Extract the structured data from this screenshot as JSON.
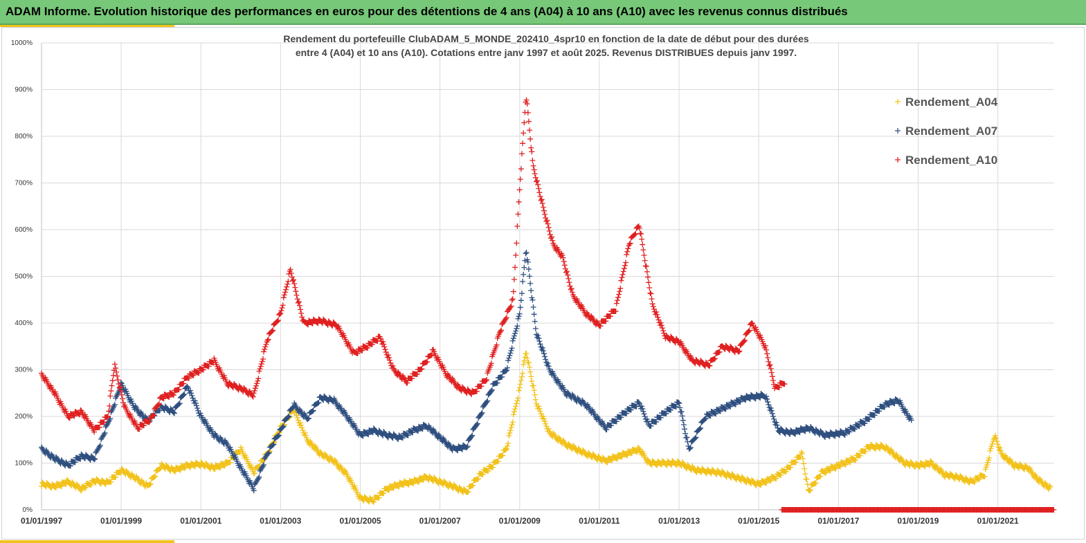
{
  "banner": {
    "title": "ADAM Informe. Evolution historique des performances en euros pour des détentions de 4 ans (A04) à 10 ans (A10) avec les revenus connus distribués"
  },
  "colors": {
    "banner": "#77c879",
    "accent": "#f2c21b",
    "A04": "#f2c21b",
    "A07": "#2f4f7f",
    "A10": "#e02020",
    "grid": "#d9d9d9"
  },
  "chart_data": {
    "type": "scatter",
    "title": [
      "Rendement du portefeuille ClubADAM_5_MONDE_202410_4spr10  en fonction de la date de début pour des durées",
      "entre 4 (A04) et 10 ans (A10). Cotations entre janv 1997 et août 2025. Revenus DISTRIBUES depuis janv 1997."
    ],
    "xlabel": "",
    "ylabel": "",
    "x_range": [
      "1997-01-01",
      "2022-06-01"
    ],
    "ylim": [
      0,
      1000
    ],
    "y_ticks": [
      "0%",
      "100%",
      "200%",
      "300%",
      "400%",
      "500%",
      "600%",
      "700%",
      "800%",
      "900%",
      "1000%"
    ],
    "x_ticks": [
      "01/01/1997",
      "01/01/1999",
      "01/01/2001",
      "01/01/2003",
      "01/01/2005",
      "01/01/2007",
      "01/01/2009",
      "01/01/2011",
      "01/01/2013",
      "01/01/2015",
      "01/01/2017",
      "01/01/2019",
      "01/01/2021"
    ],
    "grid": true,
    "legend_position": "top-right",
    "marker": "+",
    "series": [
      {
        "name": "Rendement_A04",
        "color": "#f2c21b",
        "points": [
          [
            "1997-01-01",
            55
          ],
          [
            "1997-05-01",
            50
          ],
          [
            "1997-09-01",
            60
          ],
          [
            "1998-01-01",
            45
          ],
          [
            "1998-05-01",
            62
          ],
          [
            "1998-09-01",
            58
          ],
          [
            "1999-01-01",
            85
          ],
          [
            "1999-05-01",
            70
          ],
          [
            "1999-09-01",
            50
          ],
          [
            "2000-01-01",
            95
          ],
          [
            "2000-05-01",
            85
          ],
          [
            "2000-09-01",
            95
          ],
          [
            "2001-01-01",
            98
          ],
          [
            "2001-05-01",
            90
          ],
          [
            "2001-09-01",
            100
          ],
          [
            "2002-01-01",
            130
          ],
          [
            "2002-05-01",
            80
          ],
          [
            "2002-09-01",
            120
          ],
          [
            "2003-01-01",
            175
          ],
          [
            "2003-05-01",
            215
          ],
          [
            "2003-09-01",
            150
          ],
          [
            "2004-01-01",
            120
          ],
          [
            "2004-05-01",
            105
          ],
          [
            "2004-09-01",
            75
          ],
          [
            "2005-01-01",
            25
          ],
          [
            "2005-05-01",
            20
          ],
          [
            "2005-09-01",
            45
          ],
          [
            "2006-01-01",
            55
          ],
          [
            "2006-05-01",
            60
          ],
          [
            "2006-09-01",
            70
          ],
          [
            "2007-01-01",
            60
          ],
          [
            "2007-05-01",
            50
          ],
          [
            "2007-09-01",
            38
          ],
          [
            "2008-01-01",
            75
          ],
          [
            "2008-05-01",
            95
          ],
          [
            "2008-09-01",
            130
          ],
          [
            "2009-01-01",
            260
          ],
          [
            "2009-03-01",
            340
          ],
          [
            "2009-06-01",
            230
          ],
          [
            "2009-10-01",
            165
          ],
          [
            "2010-03-01",
            140
          ],
          [
            "2010-09-01",
            120
          ],
          [
            "2011-03-01",
            105
          ],
          [
            "2011-09-01",
            120
          ],
          [
            "2012-01-01",
            130
          ],
          [
            "2012-04-01",
            100
          ],
          [
            "2012-09-01",
            100
          ],
          [
            "2013-01-01",
            100
          ],
          [
            "2013-06-01",
            85
          ],
          [
            "2014-01-01",
            80
          ],
          [
            "2014-06-01",
            70
          ],
          [
            "2015-01-01",
            55
          ],
          [
            "2015-06-01",
            70
          ],
          [
            "2015-10-01",
            90
          ],
          [
            "2016-02-01",
            120
          ],
          [
            "2016-04-01",
            40
          ],
          [
            "2016-08-01",
            80
          ],
          [
            "2017-01-01",
            95
          ],
          [
            "2017-06-01",
            110
          ],
          [
            "2017-10-01",
            135
          ],
          [
            "2018-03-01",
            135
          ],
          [
            "2018-09-01",
            100
          ],
          [
            "2019-01-01",
            95
          ],
          [
            "2019-05-01",
            100
          ],
          [
            "2019-09-01",
            75
          ],
          [
            "2020-01-01",
            70
          ],
          [
            "2020-05-01",
            60
          ],
          [
            "2020-09-01",
            75
          ],
          [
            "2020-12-01",
            160
          ],
          [
            "2021-02-01",
            120
          ],
          [
            "2021-06-01",
            95
          ],
          [
            "2021-10-01",
            90
          ],
          [
            "2022-01-01",
            65
          ],
          [
            "2022-05-01",
            45
          ]
        ]
      },
      {
        "name": "Rendement_A07",
        "color": "#2f4f7f",
        "points": [
          [
            "1997-01-01",
            130
          ],
          [
            "1997-05-01",
            110
          ],
          [
            "1997-09-01",
            95
          ],
          [
            "1998-01-01",
            115
          ],
          [
            "1998-05-01",
            110
          ],
          [
            "1998-09-01",
            185
          ],
          [
            "1999-01-01",
            270
          ],
          [
            "1999-05-01",
            220
          ],
          [
            "1999-09-01",
            190
          ],
          [
            "2000-01-01",
            220
          ],
          [
            "2000-05-01",
            210
          ],
          [
            "2000-09-01",
            265
          ],
          [
            "2001-01-01",
            200
          ],
          [
            "2001-05-01",
            160
          ],
          [
            "2001-09-01",
            140
          ],
          [
            "2002-01-01",
            90
          ],
          [
            "2002-05-01",
            45
          ],
          [
            "2002-09-01",
            120
          ],
          [
            "2003-01-01",
            170
          ],
          [
            "2003-05-01",
            225
          ],
          [
            "2003-09-01",
            195
          ],
          [
            "2004-01-01",
            240
          ],
          [
            "2004-05-01",
            235
          ],
          [
            "2004-09-01",
            200
          ],
          [
            "2005-01-01",
            160
          ],
          [
            "2005-05-01",
            170
          ],
          [
            "2005-09-01",
            160
          ],
          [
            "2006-01-01",
            155
          ],
          [
            "2006-05-01",
            170
          ],
          [
            "2006-09-01",
            180
          ],
          [
            "2007-01-01",
            155
          ],
          [
            "2007-05-01",
            130
          ],
          [
            "2007-09-01",
            135
          ],
          [
            "2008-01-01",
            200
          ],
          [
            "2008-05-01",
            265
          ],
          [
            "2008-09-01",
            300
          ],
          [
            "2009-01-01",
            420
          ],
          [
            "2009-03-01",
            560
          ],
          [
            "2009-06-01",
            380
          ],
          [
            "2009-10-01",
            300
          ],
          [
            "2010-03-01",
            250
          ],
          [
            "2010-09-01",
            225
          ],
          [
            "2011-03-01",
            175
          ],
          [
            "2011-09-01",
            210
          ],
          [
            "2012-01-01",
            230
          ],
          [
            "2012-04-01",
            180
          ],
          [
            "2012-09-01",
            210
          ],
          [
            "2013-01-01",
            230
          ],
          [
            "2013-04-01",
            130
          ],
          [
            "2013-09-01",
            200
          ],
          [
            "2014-03-01",
            220
          ],
          [
            "2014-09-01",
            240
          ],
          [
            "2015-03-01",
            245
          ],
          [
            "2015-07-01",
            170
          ],
          [
            "2015-11-01",
            165
          ],
          [
            "2016-04-01",
            175
          ],
          [
            "2016-09-01",
            160
          ],
          [
            "2017-03-01",
            165
          ],
          [
            "2017-09-01",
            190
          ],
          [
            "2018-03-01",
            225
          ],
          [
            "2018-07-01",
            235
          ],
          [
            "2018-11-01",
            190
          ]
        ]
      },
      {
        "name": "Rendement_A10",
        "color": "#e02020",
        "points": [
          [
            "1997-01-01",
            290
          ],
          [
            "1997-05-01",
            250
          ],
          [
            "1997-09-01",
            200
          ],
          [
            "1998-01-01",
            210
          ],
          [
            "1998-05-01",
            170
          ],
          [
            "1998-09-01",
            200
          ],
          [
            "1998-11-01",
            310
          ],
          [
            "1999-02-01",
            220
          ],
          [
            "1999-06-01",
            175
          ],
          [
            "1999-10-01",
            195
          ],
          [
            "2000-01-01",
            240
          ],
          [
            "2000-05-01",
            250
          ],
          [
            "2000-09-01",
            285
          ],
          [
            "2001-01-01",
            300
          ],
          [
            "2001-05-01",
            320
          ],
          [
            "2001-09-01",
            270
          ],
          [
            "2002-01-01",
            260
          ],
          [
            "2002-05-01",
            245
          ],
          [
            "2002-09-01",
            365
          ],
          [
            "2003-01-01",
            420
          ],
          [
            "2003-04-01",
            515
          ],
          [
            "2003-08-01",
            400
          ],
          [
            "2004-01-01",
            405
          ],
          [
            "2004-06-01",
            395
          ],
          [
            "2004-11-01",
            335
          ],
          [
            "2005-03-01",
            350
          ],
          [
            "2005-07-01",
            370
          ],
          [
            "2005-11-01",
            300
          ],
          [
            "2006-03-01",
            275
          ],
          [
            "2006-07-01",
            300
          ],
          [
            "2006-11-01",
            340
          ],
          [
            "2007-03-01",
            290
          ],
          [
            "2007-07-01",
            260
          ],
          [
            "2007-11-01",
            250
          ],
          [
            "2008-03-01",
            280
          ],
          [
            "2008-07-01",
            380
          ],
          [
            "2008-11-01",
            450
          ],
          [
            "2009-01-01",
            690
          ],
          [
            "2009-03-01",
            890
          ],
          [
            "2009-05-01",
            740
          ],
          [
            "2009-08-01",
            650
          ],
          [
            "2009-11-01",
            570
          ],
          [
            "2010-02-01",
            540
          ],
          [
            "2010-05-01",
            460
          ],
          [
            "2010-09-01",
            420
          ],
          [
            "2011-01-01",
            395
          ],
          [
            "2011-06-01",
            430
          ],
          [
            "2011-10-01",
            570
          ],
          [
            "2012-01-01",
            610
          ],
          [
            "2012-05-01",
            440
          ],
          [
            "2012-09-01",
            370
          ],
          [
            "2013-01-01",
            360
          ],
          [
            "2013-05-01",
            320
          ],
          [
            "2013-10-01",
            310
          ],
          [
            "2014-02-01",
            350
          ],
          [
            "2014-07-01",
            340
          ],
          [
            "2014-11-01",
            400
          ],
          [
            "2015-03-01",
            350
          ],
          [
            "2015-06-01",
            260
          ],
          [
            "2015-09-01",
            275
          ]
        ]
      }
    ],
    "baseline_series": {
      "color": "#e02020",
      "x_start": "2015-08-01",
      "x_end": "2022-06-01",
      "value": 0
    }
  }
}
